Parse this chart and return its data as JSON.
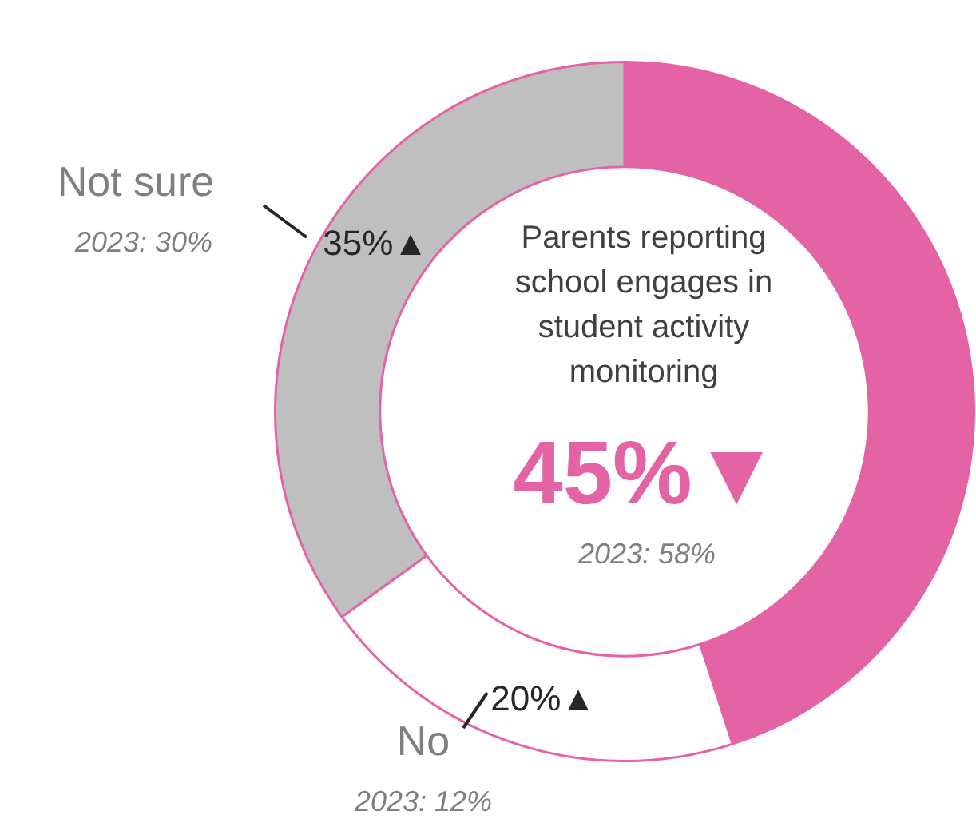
{
  "chart_data": {
    "type": "donut",
    "title": "Parents reporting school engages in student activity monitoring",
    "categories": [
      null,
      "No",
      "Not sure"
    ],
    "values": [
      45,
      20,
      35
    ],
    "colors": [
      "#e463a4",
      "#ffffff",
      "#bfbfbf"
    ],
    "value_labels": [
      "45%▼",
      "20%▲",
      "35%▲"
    ],
    "annotations": [
      "2023: 58%",
      "2023: 12%",
      "2023: 30%"
    ],
    "legend": false
  }
}
